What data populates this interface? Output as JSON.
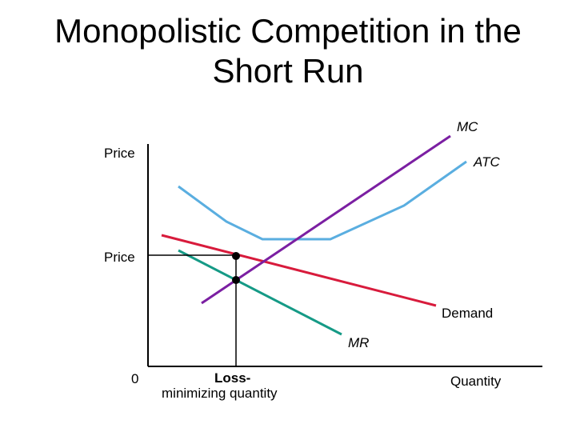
{
  "title": {
    "line1": "Monopolistic Competition in the",
    "line2": "Short Run"
  },
  "axes": {
    "y_label": "Price",
    "x_label": "Quantity",
    "origin_label": "0"
  },
  "curves": {
    "mc": "MC",
    "atc": "ATC",
    "demand": "Demand",
    "mr": "MR"
  },
  "markers": {
    "price_label": "Price",
    "quantity_label_line1": "Loss-",
    "quantity_label_line2": "minimizing quantity"
  },
  "colors": {
    "mc": "#7b1fa2",
    "atc": "#5aaee0",
    "demand": "#d81b3c",
    "mr": "#159a86",
    "axis": "#000000"
  }
}
